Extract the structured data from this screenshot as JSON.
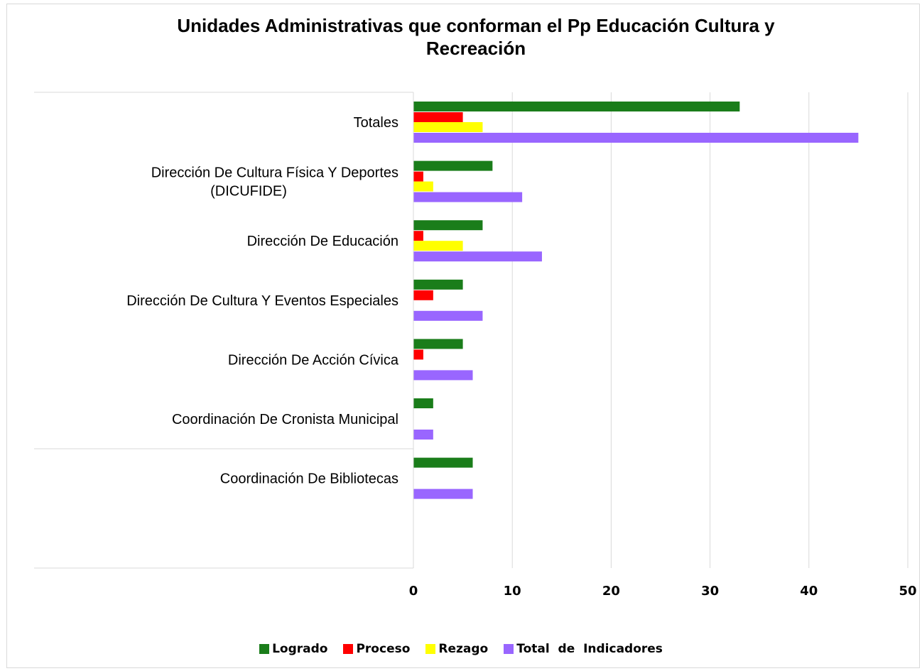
{
  "chart_data": {
    "type": "bar",
    "orientation": "horizontal",
    "title": "Unidades Administrativas que conforman el Pp Educación  Cultura y\nRecreación",
    "categories": [
      "Totales",
      "Dirección De Cultura Física Y Deportes\n(DICUFIDE)",
      "Dirección De Educación",
      "Dirección De Cultura Y Eventos Especiales",
      "Dirección De Acción Cívica",
      "Coordinación De Cronista Municipal",
      "Coordinación De Bibliotecas"
    ],
    "series": [
      {
        "name": "Logrado",
        "color": "#1a7d1a",
        "values": [
          33,
          8,
          7,
          5,
          5,
          2,
          6
        ]
      },
      {
        "name": "Proceso",
        "color": "#ff0000",
        "values": [
          5,
          1,
          1,
          2,
          1,
          0,
          0
        ]
      },
      {
        "name": "Rezago",
        "color": "#ffff00",
        "values": [
          7,
          2,
          5,
          0,
          0,
          0,
          0
        ]
      },
      {
        "name": "Total  de  Indicadores",
        "color": "#9966ff",
        "values": [
          45,
          11,
          13,
          7,
          6,
          2,
          6
        ]
      }
    ],
    "xlim": [
      0,
      50
    ],
    "xticks": [
      "0",
      "10",
      "20",
      "30",
      "40",
      "50"
    ],
    "xlabel": "",
    "ylabel": "",
    "grid": true,
    "legend_position": "bottom"
  }
}
